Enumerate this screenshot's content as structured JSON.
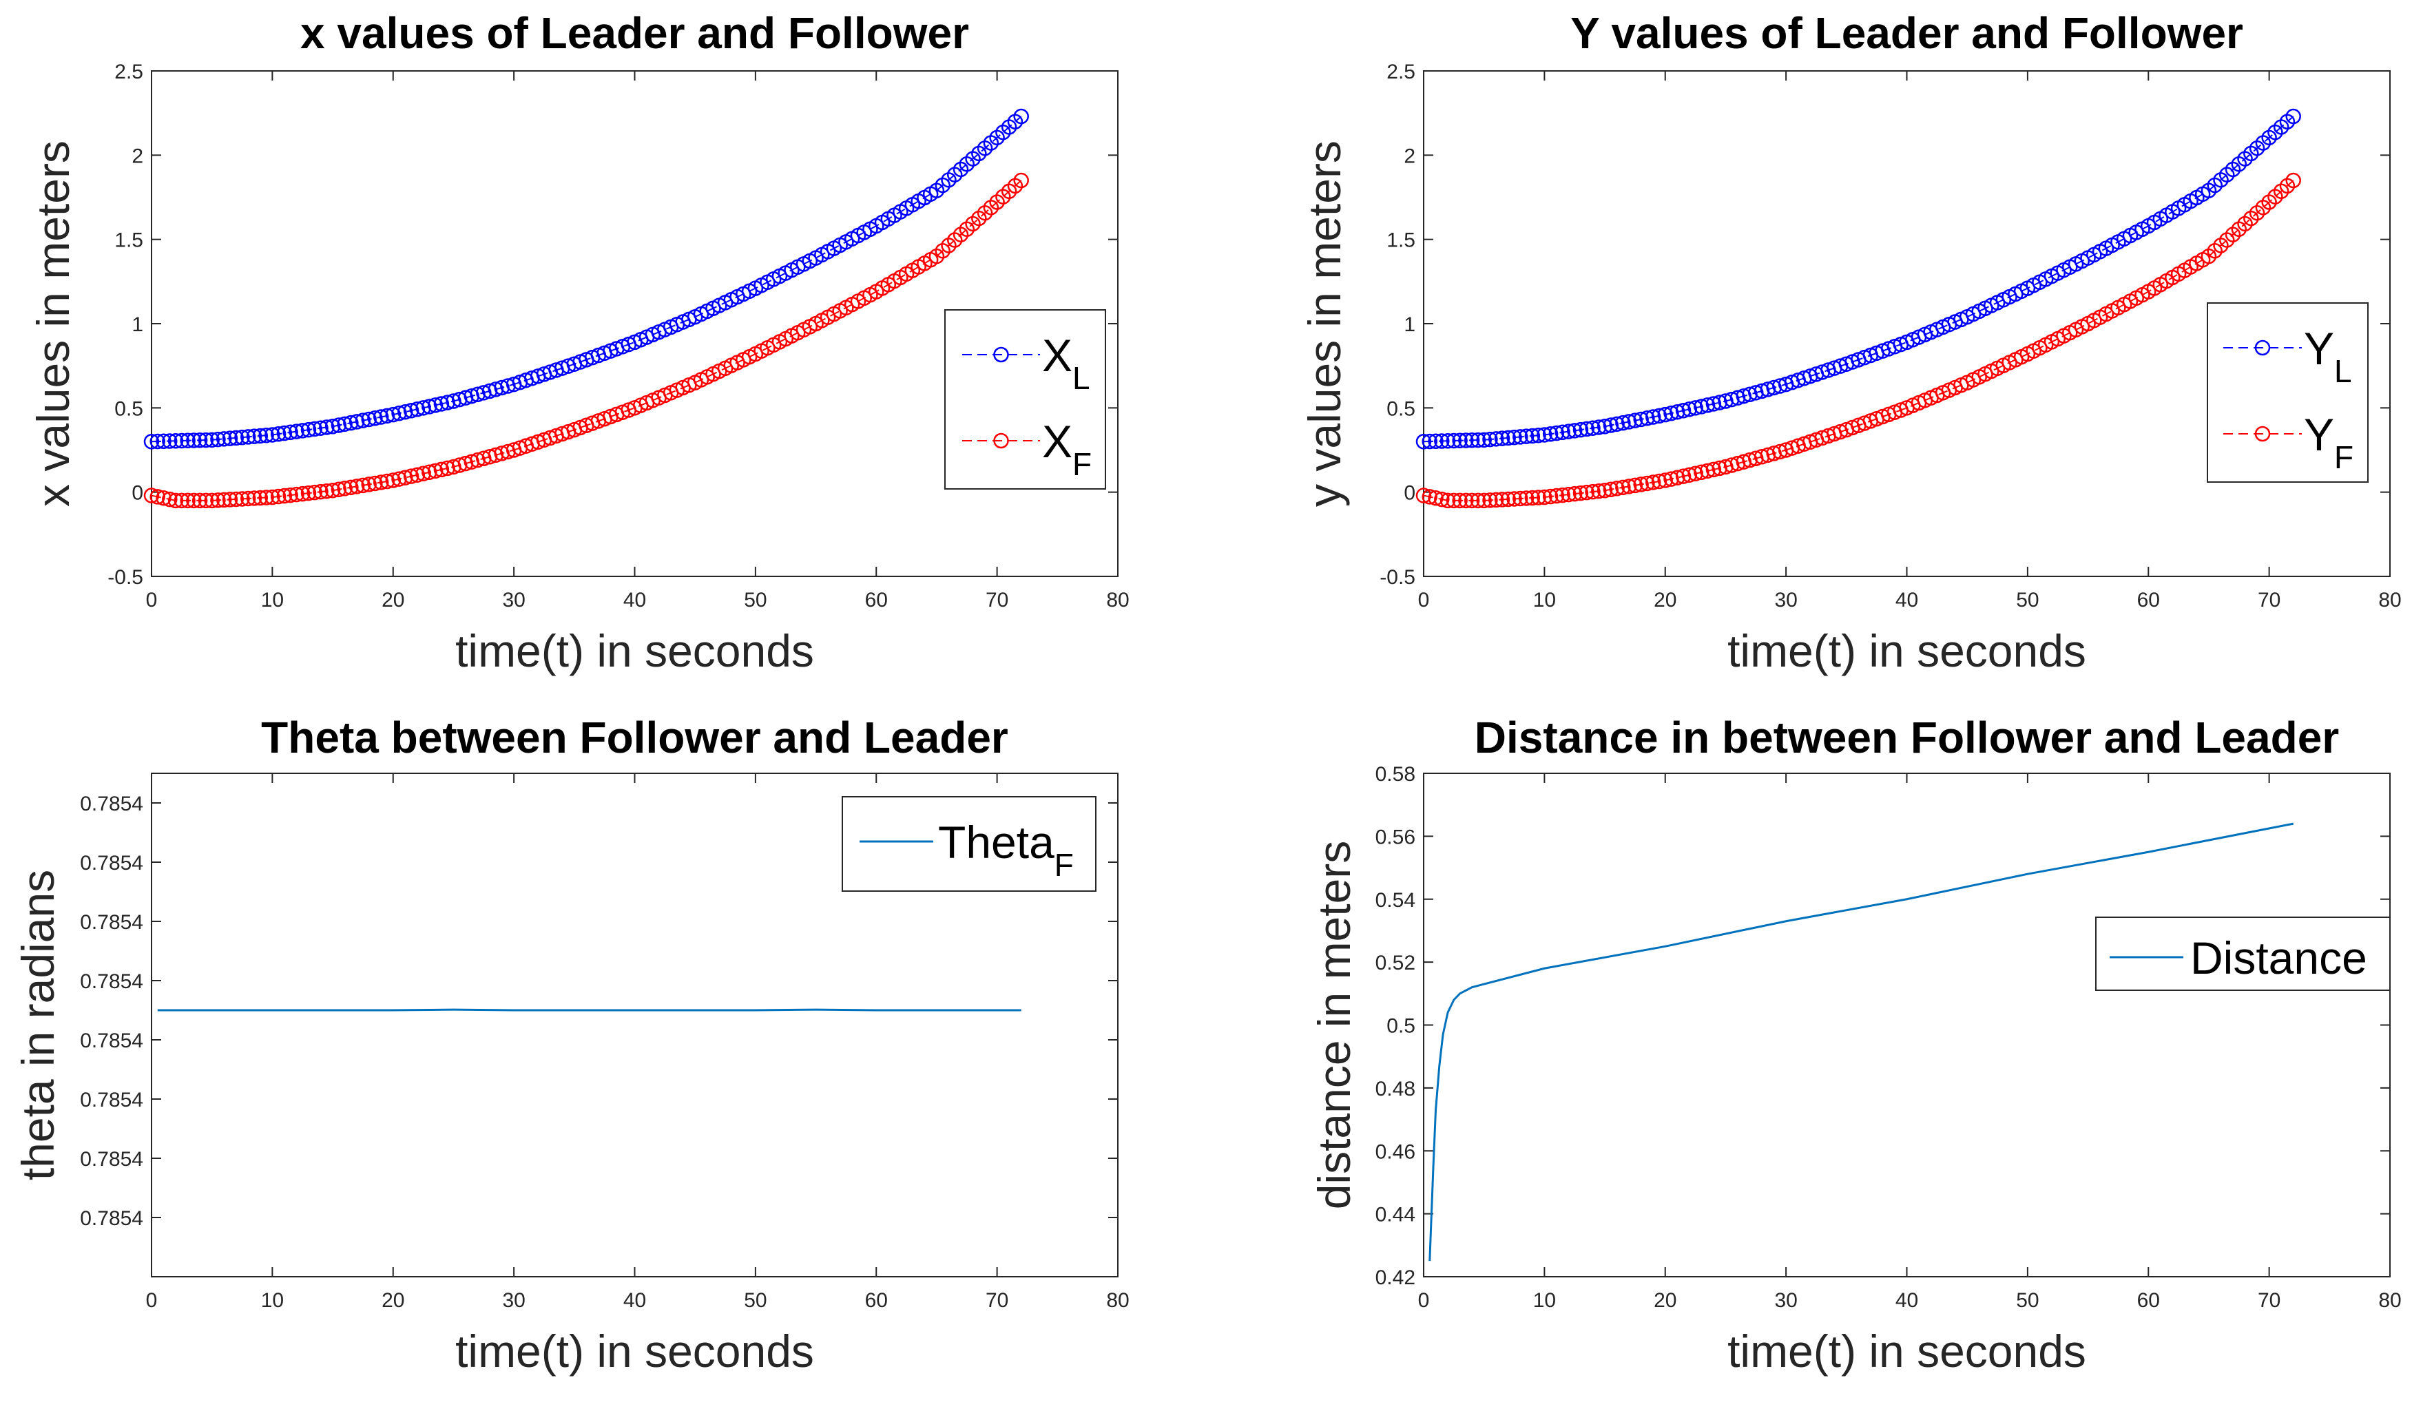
{
  "chart_data": [
    {
      "type": "line",
      "title": "x values of Leader and Follower",
      "xlabel": "time(t) in seconds",
      "ylabel": "x values in meters",
      "xlim": [
        0,
        80
      ],
      "ylim": [
        -0.5,
        2.5
      ],
      "xticks": [
        0,
        10,
        20,
        30,
        40,
        50,
        60,
        70,
        80
      ],
      "yticks": [
        -0.5,
        0,
        0.5,
        1,
        1.5,
        2,
        2.5
      ],
      "ytick_labels": [
        "-0.5",
        "0",
        "0.5",
        "1",
        "1.5",
        "2",
        "2.5"
      ],
      "legend_position": "right",
      "series": [
        {
          "name": "X",
          "sub": "L",
          "color": "#0000ff",
          "style": "dashed-circle",
          "x": [
            0,
            5,
            10,
            15,
            20,
            25,
            30,
            35,
            40,
            45,
            50,
            55,
            60,
            65,
            72
          ],
          "y": [
            0.3,
            0.31,
            0.34,
            0.39,
            0.46,
            0.54,
            0.64,
            0.76,
            0.89,
            1.04,
            1.21,
            1.39,
            1.58,
            1.79,
            2.23
          ]
        },
        {
          "name": "X",
          "sub": "F",
          "color": "#ff0000",
          "style": "dashed-circle",
          "x": [
            0,
            2,
            5,
            10,
            15,
            20,
            25,
            30,
            35,
            40,
            45,
            50,
            55,
            60,
            65,
            72
          ],
          "y": [
            -0.02,
            -0.05,
            -0.05,
            -0.03,
            0.01,
            0.07,
            0.15,
            0.25,
            0.37,
            0.5,
            0.65,
            0.82,
            1.0,
            1.19,
            1.4,
            1.85
          ]
        }
      ]
    },
    {
      "type": "line",
      "title": "Y values of Leader and Follower",
      "xlabel": "time(t) in seconds",
      "ylabel": "y values in meters",
      "xlim": [
        0,
        80
      ],
      "ylim": [
        -0.5,
        2.5
      ],
      "xticks": [
        0,
        10,
        20,
        30,
        40,
        50,
        60,
        70,
        80
      ],
      "yticks": [
        -0.5,
        0,
        0.5,
        1,
        1.5,
        2,
        2.5
      ],
      "ytick_labels": [
        "-0.5",
        "0",
        "0.5",
        "1",
        "1.5",
        "2",
        "2.5"
      ],
      "legend_position": "right",
      "series": [
        {
          "name": "Y",
          "sub": "L",
          "color": "#0000ff",
          "style": "dashed-circle",
          "x": [
            0,
            5,
            10,
            15,
            20,
            25,
            30,
            35,
            40,
            45,
            50,
            55,
            60,
            65,
            72
          ],
          "y": [
            0.3,
            0.31,
            0.34,
            0.39,
            0.46,
            0.54,
            0.64,
            0.76,
            0.89,
            1.04,
            1.21,
            1.39,
            1.58,
            1.79,
            2.23
          ]
        },
        {
          "name": "Y",
          "sub": "F",
          "color": "#ff0000",
          "style": "dashed-circle",
          "x": [
            0,
            2,
            5,
            10,
            15,
            20,
            25,
            30,
            35,
            40,
            45,
            50,
            55,
            60,
            65,
            72
          ],
          "y": [
            -0.02,
            -0.05,
            -0.05,
            -0.03,
            0.01,
            0.07,
            0.15,
            0.25,
            0.37,
            0.5,
            0.65,
            0.82,
            1.0,
            1.19,
            1.4,
            1.85
          ]
        }
      ]
    },
    {
      "type": "line",
      "title": "Theta between Follower and Leader",
      "xlabel": "time(t) in seconds",
      "ylabel": "theta in radians",
      "xlim": [
        0,
        80
      ],
      "ylim": [
        0,
        8.5
      ],
      "xticks": [
        0,
        10,
        20,
        30,
        40,
        50,
        60,
        70,
        80
      ],
      "yticks": [
        1,
        2,
        3,
        4,
        5,
        6,
        7,
        8
      ],
      "ytick_labels": [
        "0.7854",
        "0.7854",
        "0.7854",
        "0.7854",
        "0.7854",
        "0.7854",
        "0.7854",
        "0.7854"
      ],
      "legend_position": "top-right",
      "series": [
        {
          "name": "Theta",
          "sub": "F",
          "color": "#0072bd",
          "style": "solid",
          "x": [
            0.5,
            10,
            20,
            25,
            30,
            40,
            50,
            55,
            60,
            72
          ],
          "y": [
            4.5,
            4.5,
            4.5,
            4.51,
            4.5,
            4.5,
            4.5,
            4.51,
            4.5,
            4.5
          ]
        }
      ]
    },
    {
      "type": "line",
      "title": "Distance in between Follower and Leader",
      "xlabel": "time(t) in seconds",
      "ylabel": "distance in meters",
      "xlim": [
        0,
        80
      ],
      "ylim": [
        0.42,
        0.58
      ],
      "xticks": [
        0,
        10,
        20,
        30,
        40,
        50,
        60,
        70,
        80
      ],
      "yticks": [
        0.42,
        0.44,
        0.46,
        0.48,
        0.5,
        0.52,
        0.54,
        0.56,
        0.58
      ],
      "ytick_labels": [
        "0.42",
        "0.44",
        "0.46",
        "0.48",
        "0.5",
        "0.52",
        "0.54",
        "0.56",
        "0.58"
      ],
      "legend_position": "right",
      "series": [
        {
          "name": "Distance",
          "sub": "",
          "color": "#0072bd",
          "style": "solid",
          "x": [
            0.5,
            0.8,
            1.0,
            1.3,
            1.6,
            2.0,
            2.5,
            3.0,
            3.5,
            4.0,
            5.0,
            10,
            20,
            30,
            40,
            50,
            60,
            72
          ],
          "y": [
            0.425,
            0.455,
            0.473,
            0.487,
            0.497,
            0.504,
            0.508,
            0.51,
            0.511,
            0.512,
            0.513,
            0.518,
            0.525,
            0.533,
            0.54,
            0.548,
            0.555,
            0.564
          ]
        }
      ]
    }
  ]
}
